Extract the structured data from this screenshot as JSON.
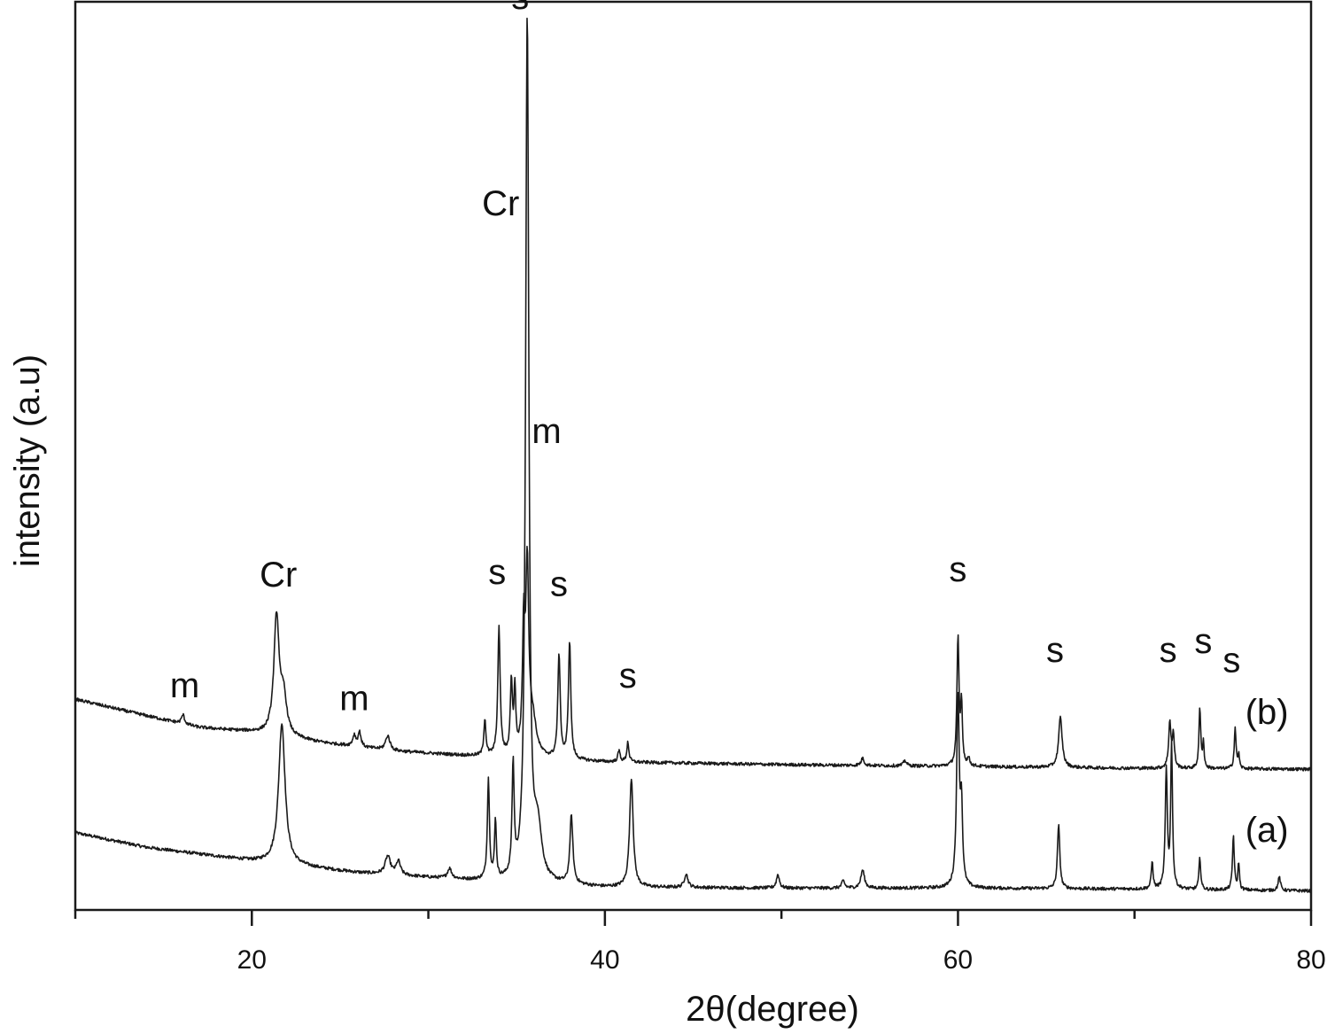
{
  "chart_data": {
    "type": "line",
    "title": "",
    "xlabel": "2θ(degree)",
    "ylabel": "intensity (a.u)",
    "xlim": [
      10,
      80
    ],
    "ylim": [
      0,
      100
    ],
    "grid": false,
    "legend": "none",
    "x_ticks": [
      20,
      40,
      60,
      80
    ],
    "x_minor_ticks": [
      10,
      30,
      50,
      70
    ],
    "line_color": "#1a1a1a",
    "series": [
      {
        "name": "(a)",
        "baseline": [
          [
            10,
            8.5
          ],
          [
            14,
            6.9
          ],
          [
            20,
            5.4
          ],
          [
            26,
            4.1
          ],
          [
            32,
            3.3
          ],
          [
            40,
            2.5
          ],
          [
            50,
            2.4
          ],
          [
            60,
            2.4
          ],
          [
            70,
            2.3
          ],
          [
            80,
            2.1
          ]
        ],
        "peaks": [
          [
            21.7,
            15.5,
            0.22
          ],
          [
            27.7,
            2.0,
            0.18
          ],
          [
            28.3,
            1.5,
            0.14
          ],
          [
            31.2,
            1.1,
            0.14
          ],
          [
            33.4,
            11.0,
            0.07
          ],
          [
            33.8,
            6.5,
            0.06
          ],
          [
            34.8,
            12.0,
            0.07
          ],
          [
            35.6,
            95.0,
            0.11
          ],
          [
            36.2,
            5.5,
            0.25
          ],
          [
            38.1,
            7.5,
            0.1
          ],
          [
            41.5,
            12.0,
            0.12
          ],
          [
            44.6,
            1.5,
            0.12
          ],
          [
            49.8,
            1.5,
            0.1
          ],
          [
            53.5,
            0.8,
            0.1
          ],
          [
            54.6,
            2.0,
            0.12
          ],
          [
            60.0,
            21.0,
            0.09
          ],
          [
            60.2,
            8.0,
            0.07
          ],
          [
            65.7,
            7.0,
            0.08
          ],
          [
            71.0,
            3.0,
            0.06
          ],
          [
            71.8,
            13.0,
            0.07
          ],
          [
            72.1,
            16.0,
            0.06
          ],
          [
            73.7,
            3.5,
            0.06
          ],
          [
            75.6,
            6.0,
            0.06
          ],
          [
            75.9,
            3.0,
            0.05
          ],
          [
            78.2,
            1.5,
            0.08
          ]
        ]
      },
      {
        "name": "(b)",
        "baseline": [
          [
            10,
            23.2
          ],
          [
            14,
            21.4
          ],
          [
            17,
            20.1
          ],
          [
            20,
            19.6
          ],
          [
            24,
            18.4
          ],
          [
            28,
            17.5
          ],
          [
            32,
            17.0
          ],
          [
            40,
            16.3
          ],
          [
            50,
            16.0
          ],
          [
            60,
            15.8
          ],
          [
            70,
            15.6
          ],
          [
            80,
            15.5
          ]
        ],
        "peaks": [
          [
            16.1,
            1.0,
            0.1
          ],
          [
            21.4,
            13.0,
            0.18
          ],
          [
            21.8,
            4.0,
            0.2
          ],
          [
            25.8,
            1.2,
            0.1
          ],
          [
            26.1,
            1.6,
            0.1
          ],
          [
            27.7,
            1.6,
            0.15
          ],
          [
            33.2,
            4.0,
            0.07
          ],
          [
            34.0,
            14.0,
            0.08
          ],
          [
            34.7,
            8.0,
            0.07
          ],
          [
            34.9,
            7.0,
            0.06
          ],
          [
            35.4,
            13.0,
            0.08
          ],
          [
            35.6,
            20.0,
            0.1
          ],
          [
            35.9,
            4.0,
            0.25
          ],
          [
            37.4,
            11.5,
            0.08
          ],
          [
            38.0,
            13.0,
            0.08
          ],
          [
            40.8,
            1.2,
            0.08
          ],
          [
            41.3,
            2.2,
            0.07
          ],
          [
            54.6,
            0.8,
            0.1
          ],
          [
            57.0,
            0.6,
            0.1
          ],
          [
            60.0,
            14.0,
            0.07
          ],
          [
            60.2,
            6.5,
            0.06
          ],
          [
            60.6,
            0.8,
            0.08
          ],
          [
            65.8,
            5.5,
            0.12
          ],
          [
            72.0,
            5.0,
            0.08
          ],
          [
            72.2,
            3.5,
            0.07
          ],
          [
            73.7,
            6.6,
            0.06
          ],
          [
            73.9,
            2.8,
            0.05
          ],
          [
            75.7,
            4.5,
            0.06
          ],
          [
            75.9,
            1.5,
            0.05
          ]
        ]
      }
    ],
    "series_labels": [
      {
        "text": "(a)",
        "x": 77.5,
        "y": 7.5
      },
      {
        "text": "(b)",
        "x": 77.5,
        "y": 20.5
      }
    ],
    "annotations": [
      {
        "text": "m",
        "x": 16.2,
        "y": 23.4
      },
      {
        "text": "Cr",
        "x": 21.5,
        "y": 35.6
      },
      {
        "text": "m",
        "x": 25.8,
        "y": 22.0
      },
      {
        "text": "s",
        "x": 33.9,
        "y": 35.9
      },
      {
        "text": "Cr",
        "x": 34.1,
        "y": 76.5
      },
      {
        "text": "s",
        "x": 35.2,
        "y": 99.2
      },
      {
        "text": "m",
        "x": 36.7,
        "y": 51.4
      },
      {
        "text": "s",
        "x": 37.4,
        "y": 34.6
      },
      {
        "text": "s",
        "x": 41.3,
        "y": 24.5
      },
      {
        "text": "s",
        "x": 60.0,
        "y": 36.2
      },
      {
        "text": "s",
        "x": 65.5,
        "y": 27.3
      },
      {
        "text": "s",
        "x": 71.9,
        "y": 27.3
      },
      {
        "text": "s",
        "x": 73.9,
        "y": 28.3
      },
      {
        "text": "s",
        "x": 75.5,
        "y": 26.2
      }
    ]
  }
}
